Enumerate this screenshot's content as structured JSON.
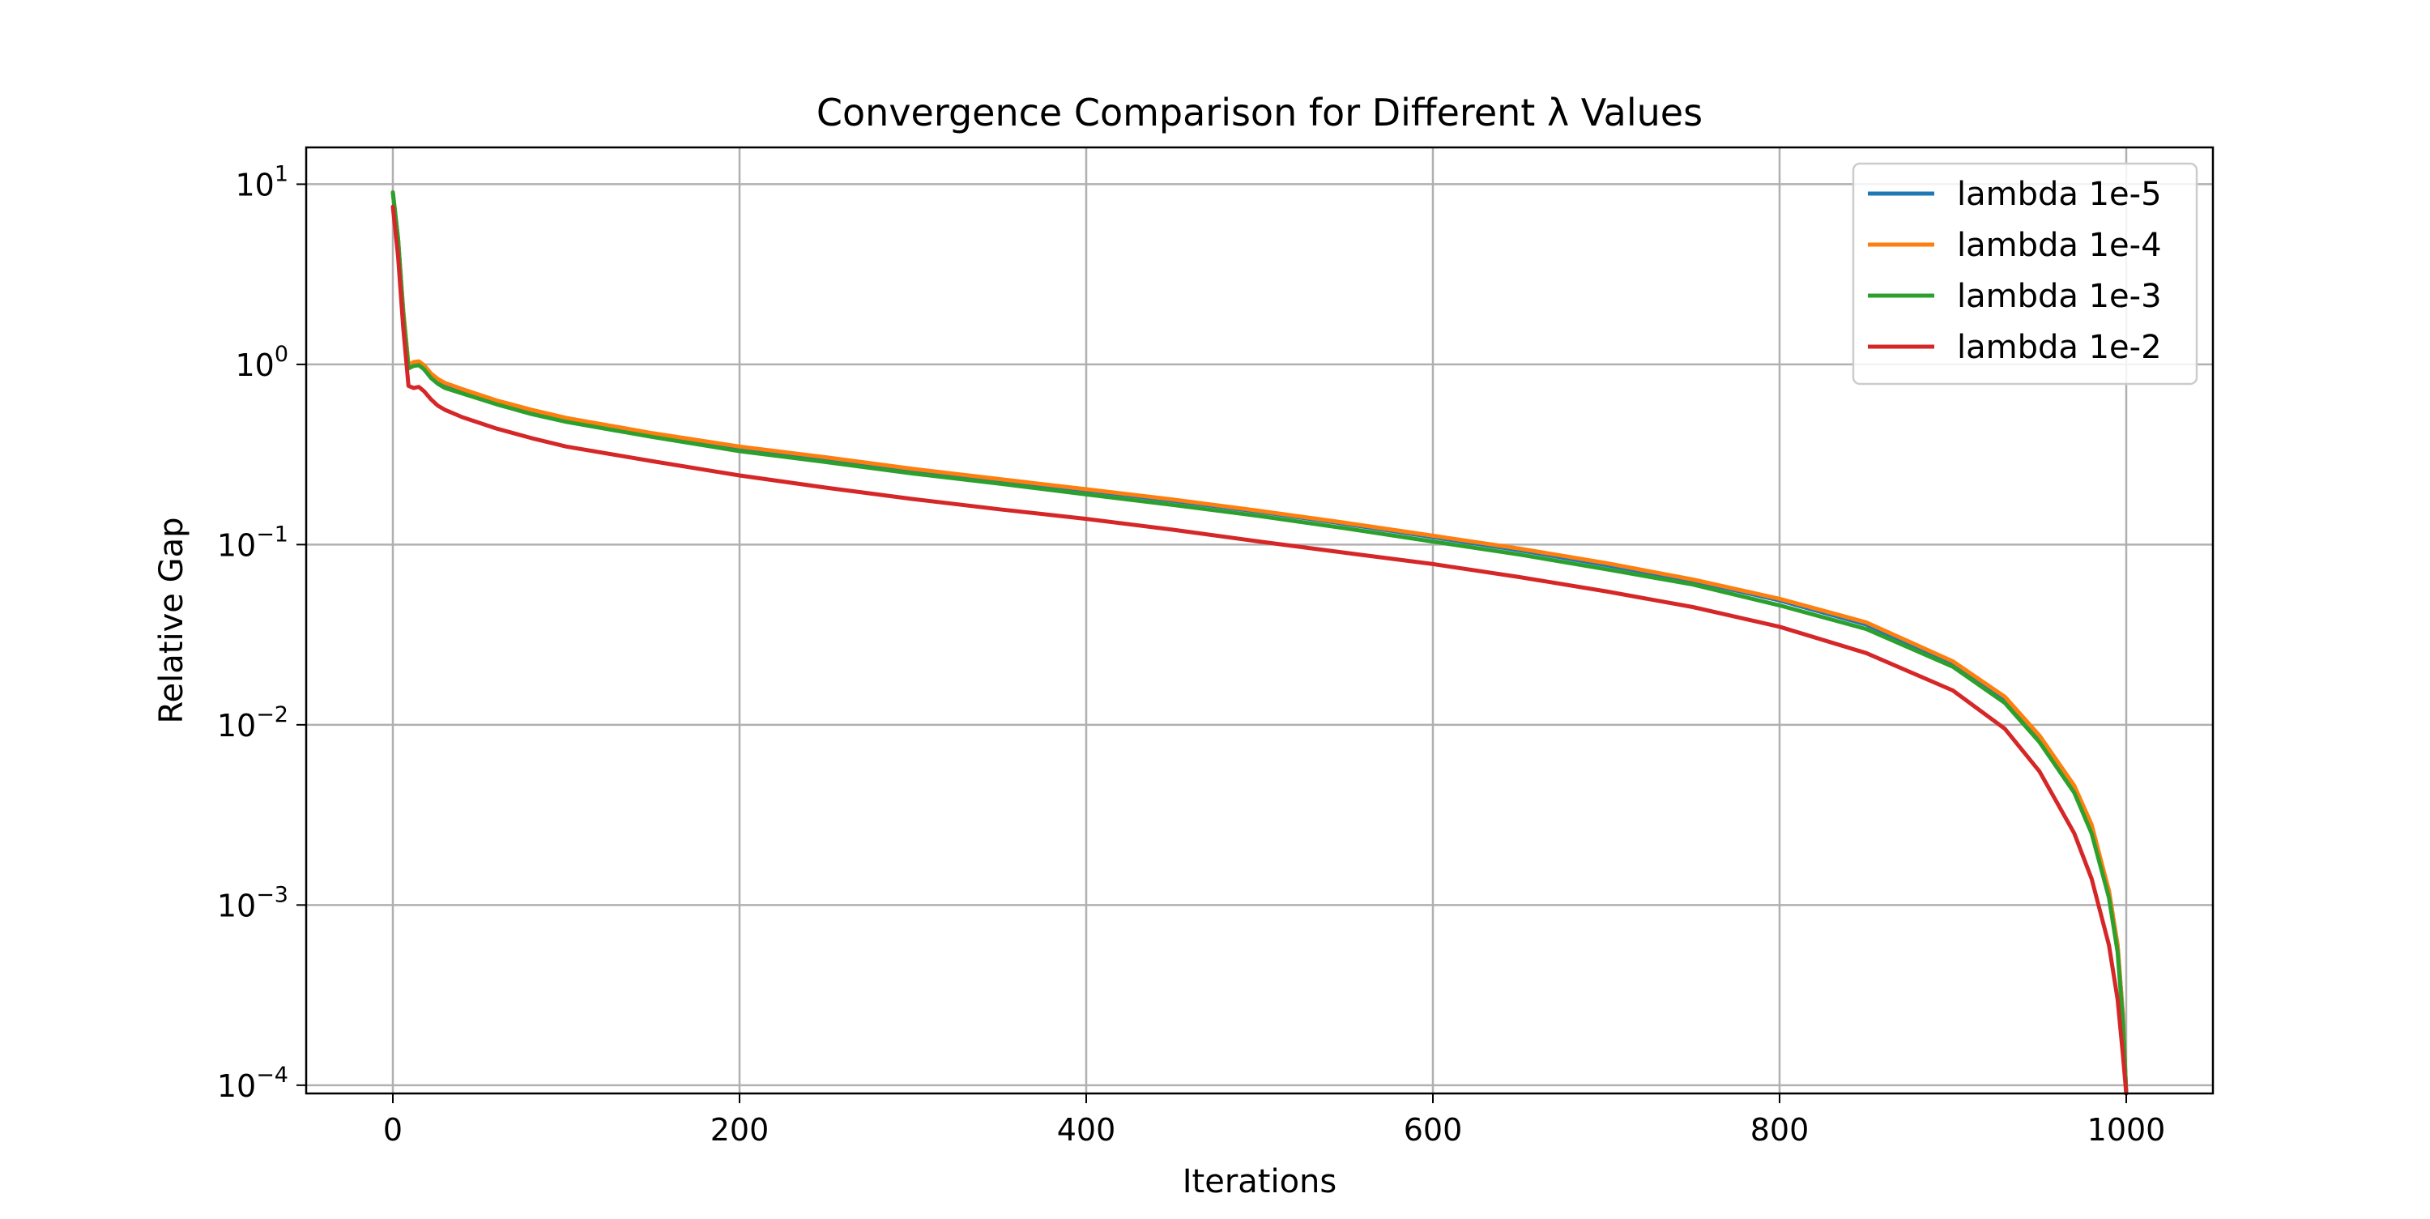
{
  "chart_data": {
    "type": "line",
    "title": "Convergence Comparison for Different λ Values",
    "xlabel": "Iterations",
    "ylabel": "Relative Gap",
    "xlim": [
      -50,
      1050
    ],
    "ylim": [
      9e-05,
      16
    ],
    "yscale": "log",
    "grid": true,
    "legend_position": "top-right",
    "x_ticks": [
      0,
      200,
      400,
      600,
      800,
      1000
    ],
    "x_tick_labels": [
      "0",
      "200",
      "400",
      "600",
      "800",
      "1000"
    ],
    "y_ticks": [
      0.0001,
      0.001,
      0.01,
      0.1,
      1,
      10
    ],
    "y_tick_labels": [
      {
        "base": "10",
        "exp": "−4"
      },
      {
        "base": "10",
        "exp": "−3"
      },
      {
        "base": "10",
        "exp": "−2"
      },
      {
        "base": "10",
        "exp": "−1"
      },
      {
        "base": "10",
        "exp": "0"
      },
      {
        "base": "10",
        "exp": "1"
      }
    ],
    "series": [
      {
        "name": "lambda 1e-5",
        "color": "#1f77b4",
        "x": [
          0,
          3,
          6,
          9,
          12,
          15,
          18,
          22,
          26,
          30,
          40,
          60,
          80,
          100,
          150,
          200,
          250,
          300,
          350,
          400,
          450,
          500,
          550,
          600,
          650,
          700,
          750,
          800,
          850,
          900,
          930,
          950,
          970,
          980,
          990,
          995,
          998,
          1000
        ],
        "y": [
          9.0,
          5.0,
          2.0,
          0.98,
          1.02,
          1.03,
          0.98,
          0.88,
          0.82,
          0.78,
          0.72,
          0.62,
          0.55,
          0.5,
          0.41,
          0.345,
          0.3,
          0.26,
          0.228,
          0.2,
          0.175,
          0.152,
          0.13,
          0.11,
          0.093,
          0.077,
          0.063,
          0.049,
          0.036,
          0.022,
          0.014,
          0.0085,
          0.0045,
          0.0027,
          0.0012,
          0.0006,
          0.00025,
          9e-05
        ]
      },
      {
        "name": "lambda 1e-4",
        "color": "#ff7f0e",
        "x": [
          0,
          3,
          6,
          9,
          12,
          15,
          18,
          22,
          26,
          30,
          40,
          60,
          80,
          100,
          150,
          200,
          250,
          300,
          350,
          400,
          450,
          500,
          550,
          600,
          650,
          700,
          750,
          800,
          850,
          900,
          930,
          950,
          970,
          980,
          990,
          995,
          998,
          1000
        ],
        "y": [
          9.0,
          5.0,
          2.0,
          0.99,
          1.03,
          1.04,
          0.99,
          0.89,
          0.83,
          0.79,
          0.73,
          0.63,
          0.56,
          0.505,
          0.415,
          0.35,
          0.305,
          0.263,
          0.231,
          0.203,
          0.178,
          0.154,
          0.132,
          0.112,
          0.095,
          0.079,
          0.064,
          0.05,
          0.037,
          0.0225,
          0.0143,
          0.0087,
          0.0046,
          0.0028,
          0.0012,
          0.0006,
          0.00025,
          9e-05
        ]
      },
      {
        "name": "lambda 1e-3",
        "color": "#2ca02c",
        "x": [
          0,
          3,
          6,
          9,
          12,
          15,
          18,
          22,
          26,
          30,
          40,
          60,
          80,
          100,
          150,
          200,
          250,
          300,
          350,
          400,
          450,
          500,
          550,
          600,
          650,
          700,
          750,
          800,
          850,
          900,
          930,
          950,
          970,
          980,
          990,
          995,
          998,
          1000
        ],
        "y": [
          9.0,
          5.0,
          1.9,
          0.95,
          0.98,
          0.99,
          0.94,
          0.84,
          0.78,
          0.74,
          0.69,
          0.6,
          0.53,
          0.48,
          0.395,
          0.33,
          0.287,
          0.248,
          0.218,
          0.19,
          0.166,
          0.144,
          0.123,
          0.104,
          0.088,
          0.073,
          0.06,
          0.046,
          0.034,
          0.021,
          0.0132,
          0.008,
          0.0042,
          0.0025,
          0.0011,
          0.00055,
          0.00023,
          9e-05
        ]
      },
      {
        "name": "lambda 1e-2",
        "color": "#d62728",
        "x": [
          0,
          3,
          6,
          9,
          12,
          15,
          18,
          22,
          26,
          30,
          40,
          60,
          80,
          100,
          150,
          200,
          250,
          300,
          350,
          400,
          450,
          500,
          550,
          600,
          650,
          700,
          750,
          800,
          850,
          900,
          930,
          950,
          970,
          980,
          990,
          995,
          998,
          1000
        ],
        "y": [
          7.5,
          4.0,
          1.6,
          0.76,
          0.74,
          0.75,
          0.71,
          0.64,
          0.59,
          0.56,
          0.51,
          0.44,
          0.39,
          0.35,
          0.29,
          0.242,
          0.207,
          0.179,
          0.157,
          0.139,
          0.121,
          0.104,
          0.09,
          0.078,
          0.066,
          0.055,
          0.045,
          0.035,
          0.025,
          0.0155,
          0.0095,
          0.0055,
          0.0025,
          0.0014,
          0.0006,
          0.0003,
          0.00015,
          9e-05
        ]
      }
    ]
  }
}
